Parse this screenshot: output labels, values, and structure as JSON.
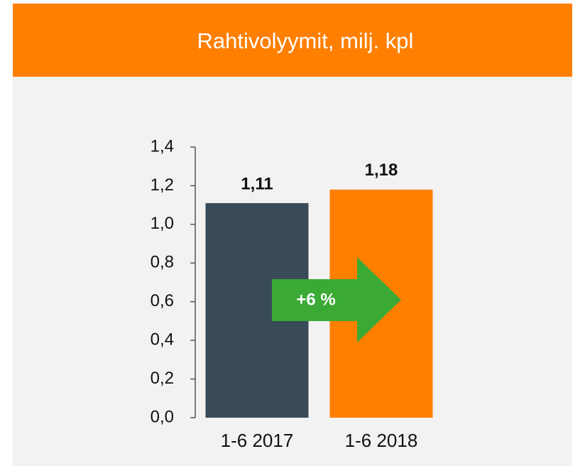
{
  "chart_data": {
    "type": "bar",
    "title": "Rahtivolyymit, milj. kpl",
    "categories": [
      "1-6 2017",
      "1-6 2018"
    ],
    "values": [
      1.11,
      1.18
    ],
    "value_labels": [
      "1,11",
      "1,18"
    ],
    "colors": [
      "#394a58",
      "#ff7f00"
    ],
    "annotation": "+6 %",
    "annotation_color": "#3aaa35",
    "ylim": [
      0,
      1.4
    ],
    "yticks": [
      {
        "value": 0,
        "label": "0,0"
      },
      {
        "value": 0.2,
        "label": "0,2"
      },
      {
        "value": 0.4,
        "label": "0,4"
      },
      {
        "value": 0.6,
        "label": "0,6"
      },
      {
        "value": 0.8,
        "label": "0,8"
      },
      {
        "value": 1.0,
        "label": "1,0"
      },
      {
        "value": 1.2,
        "label": "1,2"
      },
      {
        "value": 1.4,
        "label": "1,4"
      }
    ],
    "grid": false
  }
}
